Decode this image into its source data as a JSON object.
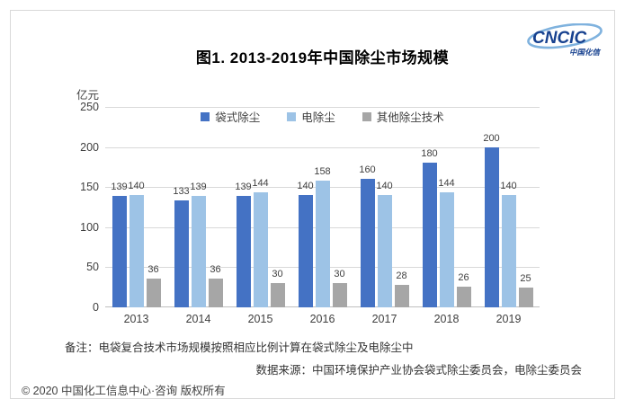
{
  "logo": {
    "text": "CNCIC",
    "subtext": "中国化信",
    "text_color": "#17418f",
    "swoosh_color": "#7fb2de"
  },
  "title": "图1. 2013-2019年中国除尘市场规模",
  "unit_label": "亿元",
  "note": "备注：电袋复合技术市场规模按照相应比例计算在袋式除尘及电除尘中",
  "source": "数据来源：中国环境保护产业协会袋式除尘委员会，电除尘委员会",
  "copyright": "© 2020 中国化工信息中心·咨询 版权所有",
  "colors": {
    "grid": "#d9d9d9",
    "axis": "#bfbfbf",
    "label": "#404040",
    "frame_border": "#d9d9d9"
  },
  "chart_data": {
    "type": "bar",
    "categories": [
      "2013",
      "2014",
      "2015",
      "2016",
      "2017",
      "2018",
      "2019"
    ],
    "series": [
      {
        "name": "袋式除尘",
        "color": "#4472c4",
        "values": [
          139,
          133,
          139,
          140,
          160,
          180,
          200
        ]
      },
      {
        "name": "电除尘",
        "color": "#9dc3e6",
        "values": [
          140,
          139,
          144,
          158,
          140,
          144,
          140
        ]
      },
      {
        "name": "其他除尘技术",
        "color": "#a6a6a6",
        "values": [
          36,
          36,
          30,
          30,
          28,
          26,
          25
        ]
      }
    ],
    "title": "图1. 2013-2019年中国除尘市场规模",
    "xlabel": "",
    "ylabel": "亿元",
    "ylim": [
      0,
      250
    ],
    "ytick_step": 50,
    "grid": true,
    "legend_position": "top",
    "value_labels": true
  }
}
